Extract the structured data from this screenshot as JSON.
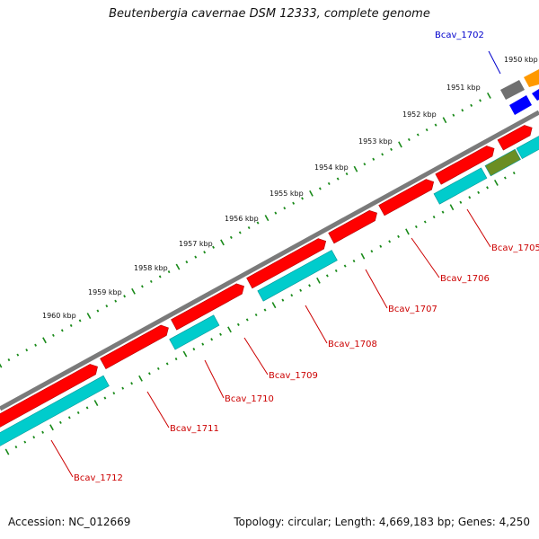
{
  "title": "Beutenbergia cavernae DSM 12333, complete genome",
  "footer": {
    "accession": "Accession: NC_012669",
    "topology": "Topology: circular; Length: 4,669,183 bp; Genes: 4,250"
  },
  "colors": {
    "backbone": "#808080",
    "tick_dots": "#1a8a1a",
    "cds_forward": "#ff0000",
    "cds_reverse": "#00cccc",
    "label_red": "#cc0000",
    "label_blue": "#0000cc",
    "gray_feature": "#707070",
    "orange_feature": "#ff9900",
    "olive_feature": "#6b8e23",
    "blue_feature": "#0000ff"
  },
  "scale_labels": [
    "1950 kbp",
    "1951 kbp",
    "1952 kbp",
    "1953 kbp",
    "1954 kbp",
    "1955 kbp",
    "1956 kbp",
    "1957 kbp",
    "1958 kbp",
    "1959 kbp",
    "1960 kbp"
  ],
  "gene_labels": [
    "Bcav_1702",
    "Bcav_1705",
    "Bcav_1706",
    "Bcav_1707",
    "Bcav_1708",
    "Bcav_1709",
    "Bcav_1710",
    "Bcav_1711",
    "Bcav_1712"
  ]
}
